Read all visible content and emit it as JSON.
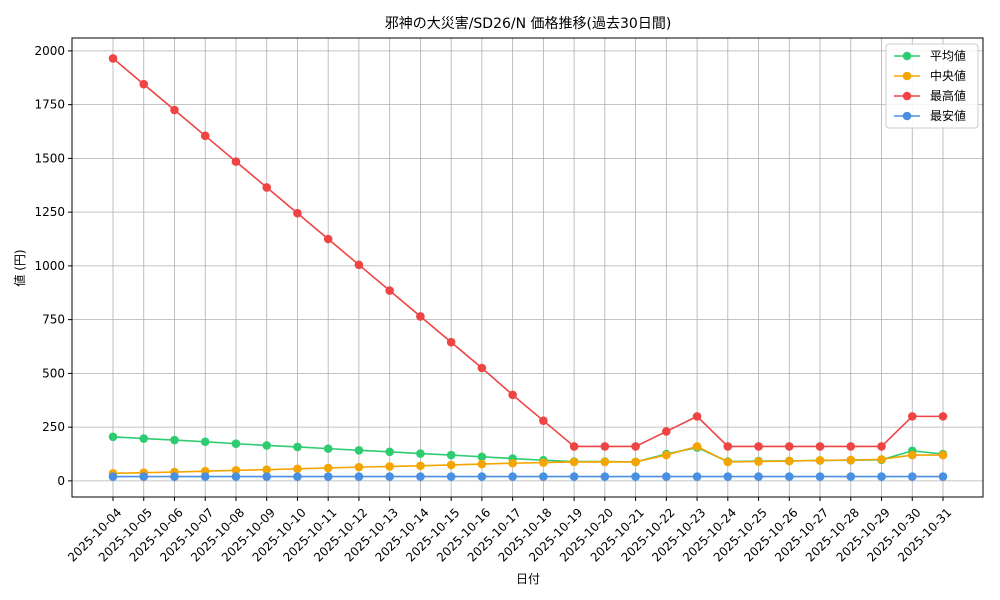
{
  "chart_data": {
    "type": "line",
    "title": "邪神の大災害/SD26/N 価格推移(過去30日間)",
    "xlabel": "日付",
    "ylabel": "値 (円)",
    "ylim": [
      -75,
      2060
    ],
    "yticks": [
      0,
      250,
      500,
      750,
      1000,
      1250,
      1500,
      1750,
      2000
    ],
    "grid": true,
    "legend_position": "top-right",
    "categories": [
      "2025-10-04",
      "2025-10-05",
      "2025-10-06",
      "2025-10-07",
      "2025-10-08",
      "2025-10-09",
      "2025-10-10",
      "2025-10-11",
      "2025-10-12",
      "2025-10-13",
      "2025-10-14",
      "2025-10-15",
      "2025-10-16",
      "2025-10-17",
      "2025-10-18",
      "2025-10-19",
      "2025-10-20",
      "2025-10-21",
      "2025-10-22",
      "2025-10-23",
      "2025-10-24",
      "2025-10-25",
      "2025-10-26",
      "2025-10-27",
      "2025-10-28",
      "2025-10-29",
      "2025-10-30",
      "2025-10-31"
    ],
    "series": [
      {
        "name": "平均値",
        "color": "#2ecc71",
        "values": [
          205,
          197,
          190,
          182,
          173,
          165,
          158,
          150,
          142,
          135,
          127,
          120,
          112,
          104,
          96,
          90,
          90,
          88,
          125,
          155,
          90,
          92,
          93,
          95,
          96,
          98,
          140,
          125
        ]
      },
      {
        "name": "中央値",
        "color": "#f5a500",
        "values": [
          35,
          38,
          41,
          45,
          49,
          52,
          56,
          60,
          64,
          67,
          70,
          74,
          78,
          82,
          85,
          88,
          88,
          88,
          120,
          160,
          88,
          90,
          92,
          95,
          97,
          100,
          120,
          120
        ]
      },
      {
        "name": "最高値",
        "color": "#ef4444",
        "values": [
          1965,
          1845,
          1725,
          1605,
          1485,
          1365,
          1245,
          1125,
          1005,
          885,
          765,
          645,
          525,
          400,
          280,
          160,
          160,
          160,
          230,
          300,
          160,
          160,
          160,
          160,
          160,
          160,
          300,
          300
        ]
      },
      {
        "name": "最安値",
        "color": "#4a90e2",
        "values": [
          20,
          20,
          20,
          20,
          20,
          20,
          20,
          20,
          20,
          20,
          20,
          20,
          20,
          20,
          20,
          20,
          20,
          20,
          20,
          20,
          20,
          20,
          20,
          20,
          20,
          20,
          20,
          20
        ]
      }
    ]
  }
}
